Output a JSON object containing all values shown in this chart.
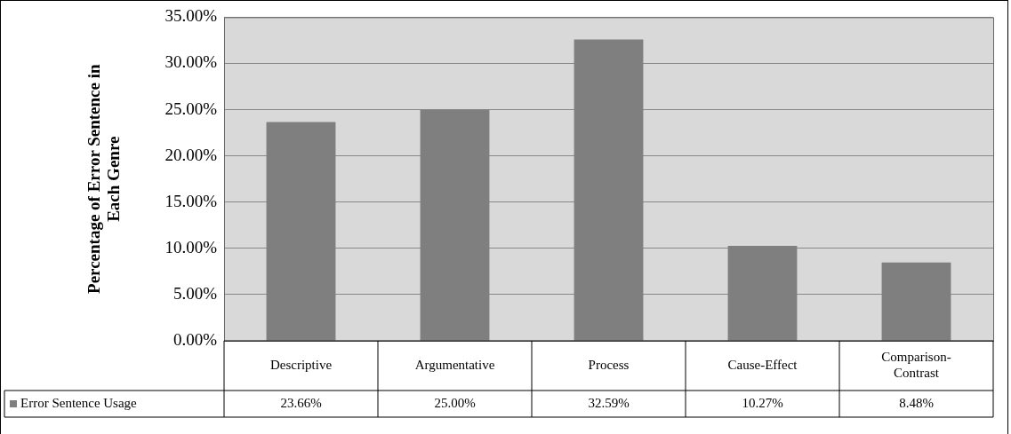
{
  "chart_data": {
    "type": "bar",
    "ylabel": "Percentage of Error Sentence in Each Genre",
    "categories": [
      "Descriptive",
      "Argumentative",
      "Process",
      "Cause-Effect",
      "Comparison-Contrast"
    ],
    "series": [
      {
        "name": "Error Sentence Usage",
        "color": "#7f7f7f",
        "values": [
          23.66,
          25.0,
          32.59,
          10.27,
          8.48
        ],
        "value_labels": [
          "23.66%",
          "25.00%",
          "32.59%",
          "10.27%",
          "8.48%"
        ]
      }
    ],
    "ylim": [
      0,
      35
    ],
    "yticks": [
      {
        "value": 0,
        "label": "0.00%"
      },
      {
        "value": 5,
        "label": "5.00%"
      },
      {
        "value": 10,
        "label": "10.00%"
      },
      {
        "value": 15,
        "label": "15.00%"
      },
      {
        "value": 20,
        "label": "20.00%"
      },
      {
        "value": 25,
        "label": "25.00%"
      },
      {
        "value": 30,
        "label": "30.00%"
      },
      {
        "value": 35,
        "label": "35.00%"
      }
    ],
    "grid": "y",
    "legend": "bottom left"
  }
}
